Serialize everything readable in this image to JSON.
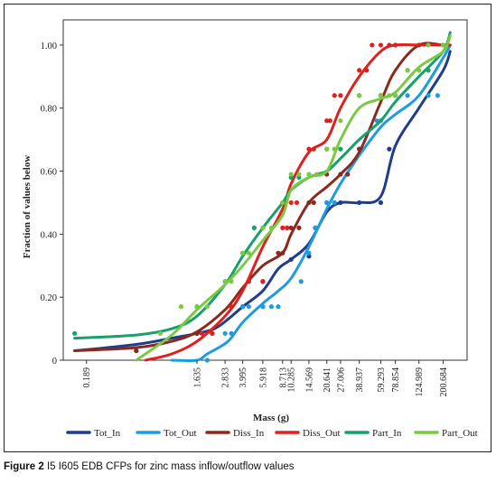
{
  "figure": {
    "caption_label": "Figure 2",
    "caption_text": "I5 I605 EDB CFPs for zinc mass inflow/outflow values"
  },
  "chart_data": {
    "type": "line",
    "xlabel": "Mass (g)",
    "ylabel": "Fraction of values below",
    "ylim": [
      0,
      1.08
    ],
    "xscale": "log",
    "xlim": [
      0.12,
      320
    ],
    "x_ticks": [
      "0.189",
      "1.635",
      "2.833",
      "3.995",
      "5.918",
      "8.713",
      "10.285",
      "14.569",
      "20.641",
      "27.006",
      "38.937",
      "59.293",
      "78.854",
      "124.989",
      "200.684"
    ],
    "y_ticks": [
      "0",
      "0.20",
      "0.40",
      "0.60",
      "0.80",
      "1.00"
    ],
    "grid": false,
    "legend_position": "bottom",
    "series": [
      {
        "name": "Tot_In",
        "color": "#1f3d8a",
        "x": [
          0.15,
          0.5,
          1.0,
          1.635,
          2.3,
          3.0,
          4.0,
          5.918,
          8.0,
          10.285,
          14.569,
          20.641,
          27.006,
          38.937,
          59.293,
          78.854,
          124.989,
          200.684,
          230
        ],
        "y": [
          0.03,
          0.05,
          0.07,
          0.085,
          0.1,
          0.13,
          0.17,
          0.22,
          0.29,
          0.32,
          0.37,
          0.47,
          0.5,
          0.5,
          0.52,
          0.68,
          0.8,
          0.92,
          0.98
        ],
        "points": [
          [
            0.5,
            0.03
          ],
          [
            1.635,
            0.085
          ],
          [
            3.995,
            0.17
          ],
          [
            5.918,
            0.17
          ],
          [
            10.285,
            0.32
          ],
          [
            14.569,
            0.33
          ],
          [
            16.5,
            0.42
          ],
          [
            20.641,
            0.5
          ],
          [
            24,
            0.5
          ],
          [
            27.006,
            0.5
          ],
          [
            38.937,
            0.5
          ],
          [
            59.293,
            0.5
          ],
          [
            70,
            0.67
          ]
        ]
      },
      {
        "name": "Tot_Out",
        "color": "#1f9be0",
        "x": [
          1.0,
          1.635,
          2.0,
          3.0,
          3.995,
          5.918,
          8.0,
          10.285,
          14.569,
          20.641,
          27.006,
          38.937,
          59.293,
          78.854,
          124.989,
          200.684,
          230
        ],
        "y": [
          0.0,
          0.0,
          0.02,
          0.06,
          0.12,
          0.18,
          0.22,
          0.26,
          0.36,
          0.48,
          0.56,
          0.65,
          0.74,
          0.78,
          0.84,
          0.96,
          1.0
        ],
        "points": [
          [
            2.0,
            0.0
          ],
          [
            2.833,
            0.085
          ],
          [
            3.2,
            0.085
          ],
          [
            3.995,
            0.17
          ],
          [
            4.5,
            0.17
          ],
          [
            5.918,
            0.17
          ],
          [
            7.0,
            0.17
          ],
          [
            8.0,
            0.17
          ],
          [
            12.5,
            0.25
          ],
          [
            14.569,
            0.34
          ],
          [
            16.5,
            0.42
          ],
          [
            20.641,
            0.5
          ],
          [
            24,
            0.5
          ],
          [
            27.006,
            0.59
          ],
          [
            31,
            0.59
          ],
          [
            38.937,
            0.67
          ],
          [
            55,
            0.76
          ],
          [
            59.293,
            0.76
          ],
          [
            78.854,
            0.84
          ],
          [
            100,
            0.84
          ],
          [
            150,
            0.84
          ],
          [
            180,
            0.84
          ]
        ]
      },
      {
        "name": "Diss_In",
        "color": "#8b2a1c",
        "x": [
          0.15,
          0.5,
          1.0,
          1.635,
          2.833,
          3.995,
          5.918,
          8.713,
          10.285,
          14.569,
          20.641,
          27.006,
          38.937,
          59.293,
          78.854,
          124.989,
          200.684,
          230
        ],
        "y": [
          0.03,
          0.04,
          0.06,
          0.09,
          0.16,
          0.23,
          0.3,
          0.34,
          0.4,
          0.5,
          0.55,
          0.59,
          0.66,
          0.82,
          0.92,
          1.0,
          1.0,
          1.0
        ],
        "points": [
          [
            0.5,
            0.03
          ],
          [
            1.635,
            0.085
          ],
          [
            2.2,
            0.085
          ],
          [
            5.918,
            0.25
          ],
          [
            8.0,
            0.34
          ],
          [
            8.713,
            0.34
          ],
          [
            10.285,
            0.42
          ],
          [
            12.0,
            0.42
          ],
          [
            14.569,
            0.5
          ],
          [
            16,
            0.5
          ],
          [
            18,
            0.59
          ],
          [
            20.641,
            0.59
          ],
          [
            27.006,
            0.59
          ],
          [
            31,
            0.59
          ],
          [
            38.937,
            0.67
          ],
          [
            59.293,
            0.84
          ],
          [
            78.854,
            1.0
          ],
          [
            124.989,
            1.0
          ],
          [
            200.684,
            1.0
          ]
        ]
      },
      {
        "name": "Diss_Out",
        "color": "#e02020",
        "x": [
          0.6,
          1.0,
          1.635,
          2.833,
          3.995,
          5.918,
          8.713,
          10.285,
          14.569,
          20.641,
          27.006,
          38.937,
          59.293,
          78.854,
          124.989,
          200.684,
          230
        ],
        "y": [
          0.0,
          0.02,
          0.06,
          0.14,
          0.22,
          0.36,
          0.48,
          0.56,
          0.66,
          0.7,
          0.8,
          0.9,
          0.98,
          1.0,
          1.0,
          1.0,
          1.0
        ],
        "points": [
          [
            1.8,
            0.085
          ],
          [
            2.2,
            0.085
          ],
          [
            3.2,
            0.17
          ],
          [
            4.5,
            0.25
          ],
          [
            5.918,
            0.25
          ],
          [
            8.713,
            0.42
          ],
          [
            9.5,
            0.42
          ],
          [
            10.285,
            0.5
          ],
          [
            11.5,
            0.5
          ],
          [
            14.569,
            0.67
          ],
          [
            16,
            0.67
          ],
          [
            20.641,
            0.76
          ],
          [
            22,
            0.76
          ],
          [
            24,
            0.84
          ],
          [
            27.006,
            0.84
          ],
          [
            38.937,
            0.92
          ],
          [
            45,
            0.92
          ],
          [
            50,
            1.0
          ],
          [
            59.293,
            1.0
          ],
          [
            70,
            1.0
          ],
          [
            78.854,
            1.0
          ]
        ]
      },
      {
        "name": "Part_In",
        "color": "#16a06a",
        "x": [
          0.15,
          0.5,
          1.0,
          1.635,
          2.833,
          3.995,
          5.918,
          8.713,
          10.285,
          14.569,
          20.641,
          27.006,
          38.937,
          59.293,
          78.854,
          124.989,
          200.684,
          230
        ],
        "y": [
          0.07,
          0.08,
          0.1,
          0.14,
          0.24,
          0.33,
          0.42,
          0.5,
          0.54,
          0.58,
          0.6,
          0.64,
          0.7,
          0.76,
          0.82,
          0.9,
          0.98,
          1.04
        ],
        "points": [
          [
            0.15,
            0.085
          ],
          [
            1.635,
            0.17
          ],
          [
            2.833,
            0.25
          ],
          [
            3.995,
            0.34
          ],
          [
            5.0,
            0.42
          ],
          [
            5.918,
            0.42
          ],
          [
            8.713,
            0.5
          ],
          [
            10.285,
            0.58
          ],
          [
            12.0,
            0.58
          ],
          [
            14.569,
            0.59
          ],
          [
            20.641,
            0.67
          ],
          [
            27.006,
            0.67
          ],
          [
            38.937,
            0.84
          ],
          [
            59.293,
            0.84
          ],
          [
            78.854,
            0.84
          ],
          [
            100,
            0.92
          ],
          [
            150,
            0.92
          ],
          [
            200.684,
            1.0
          ]
        ]
      },
      {
        "name": "Part_Out",
        "color": "#7ac943",
        "x": [
          0.5,
          1.0,
          1.635,
          2.833,
          3.995,
          5.918,
          8.713,
          10.285,
          14.569,
          20.641,
          27.006,
          38.937,
          59.293,
          78.854,
          124.989,
          200.684,
          230
        ],
        "y": [
          0.0,
          0.08,
          0.16,
          0.24,
          0.3,
          0.38,
          0.46,
          0.54,
          0.58,
          0.6,
          0.7,
          0.8,
          0.83,
          0.85,
          0.93,
          0.98,
          1.03
        ],
        "points": [
          [
            0.8,
            0.085
          ],
          [
            1.2,
            0.17
          ],
          [
            1.635,
            0.17
          ],
          [
            2.0,
            0.17
          ],
          [
            2.833,
            0.25
          ],
          [
            3.2,
            0.25
          ],
          [
            3.995,
            0.34
          ],
          [
            4.5,
            0.34
          ],
          [
            5.918,
            0.42
          ],
          [
            7.0,
            0.42
          ],
          [
            8.713,
            0.5
          ],
          [
            10.285,
            0.59
          ],
          [
            12.0,
            0.59
          ],
          [
            14.569,
            0.59
          ],
          [
            17,
            0.59
          ],
          [
            20.641,
            0.67
          ],
          [
            24,
            0.67
          ],
          [
            27.006,
            0.76
          ],
          [
            38.937,
            0.84
          ],
          [
            59.293,
            0.84
          ],
          [
            70,
            0.84
          ],
          [
            78.854,
            0.84
          ],
          [
            100,
            0.92
          ],
          [
            124.989,
            0.92
          ],
          [
            150,
            1.0
          ],
          [
            200.684,
            1.0
          ]
        ]
      }
    ]
  }
}
